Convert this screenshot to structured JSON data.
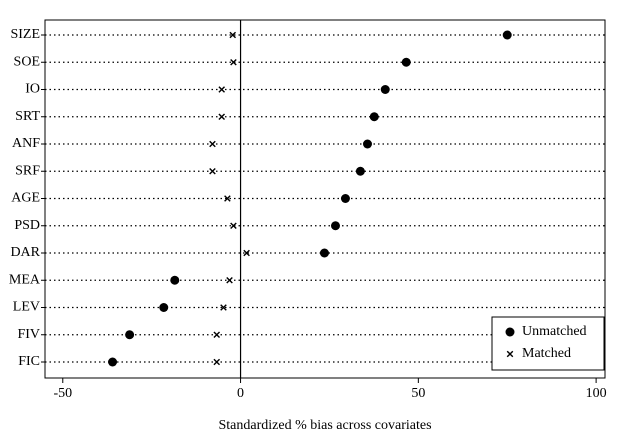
{
  "chart_data": {
    "type": "dot",
    "xlabel": "Standardized % bias across covariates",
    "categories": [
      "SIZE",
      "SOE",
      "IO",
      "SRT",
      "ANF",
      "SRF",
      "AGE",
      "PSD",
      "DAR",
      "MEA",
      "LEV",
      "FIV",
      "FIC"
    ],
    "series": [
      {
        "name": "Unmatched",
        "marker": "circle",
        "color": "#000000",
        "values": [
          75.0,
          46.6,
          40.7,
          37.6,
          35.7,
          33.7,
          29.5,
          26.7,
          23.6,
          -18.5,
          -21.6,
          -31.2,
          -36.0
        ]
      },
      {
        "name": "Matched",
        "marker": "x",
        "color": "#000000",
        "values": [
          -2.2,
          -2.0,
          -5.3,
          -5.3,
          -7.9,
          -7.9,
          -3.7,
          -2.0,
          1.7,
          -3.1,
          -4.8,
          -6.7,
          -6.7
        ]
      }
    ],
    "xlim": [
      -55,
      102.5
    ],
    "xticks": [
      -50,
      0,
      50,
      100
    ],
    "legend": "lower right"
  }
}
